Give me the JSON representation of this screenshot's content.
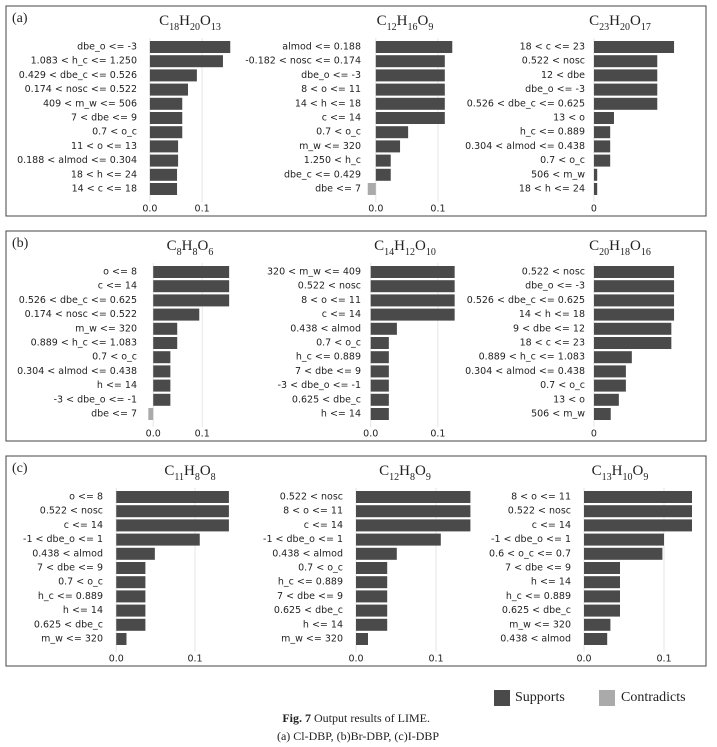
{
  "panels": [
    "(a)",
    "(b)",
    "(c)"
  ],
  "legend": {
    "series": [
      {
        "name": "Supports",
        "color": "#4a4a4a"
      },
      {
        "name": "Contradicts",
        "color": "#aaaaaa"
      }
    ]
  },
  "caption": {
    "label": "Fig. 7",
    "text": "Output results of LIME.",
    "subtitle": "(a) Cl-DBP, (b)Br-DBP, (c)I-DBP"
  },
  "chart_data": [
    {
      "type": "barh",
      "title": "C18H20O13",
      "categories": [
        "dbe_o <= -3",
        "1.083 < h_c <= 1.250",
        "0.429 < dbe_c <= 0.526",
        "0.174 < nosc <= 0.522",
        "409 < m_w <= 506",
        "7 < dbe <= 9",
        "0.7 < o_c",
        "11 < o <= 13",
        "0.188 < almod <= 0.304",
        "18 < h <= 24",
        "14 < c <= 18"
      ],
      "values": [
        0.154,
        0.14,
        0.09,
        0.073,
        0.062,
        0.062,
        0.062,
        0.054,
        0.054,
        0.052,
        0.052
      ],
      "xlim": [
        -0.019,
        0.165
      ],
      "xticks": [
        {
          "value": 0,
          "label": "0.0"
        },
        0.1
      ],
      "grid": true
    },
    {
      "type": "barh",
      "title": "C12H16O9",
      "categories": [
        "almod <= 0.188",
        "-0.182 < nosc <= 0.174",
        "dbe_o <= -3",
        "8 < o <= 11",
        "14 < h <= 18",
        "c <= 14",
        "0.7 < o_c",
        "m_w <= 320",
        "1.250 < h_c",
        "dbe_c <= 0.429",
        "dbe <= 7"
      ],
      "values": [
        0.123,
        0.111,
        0.111,
        0.111,
        0.111,
        0.111,
        0.052,
        0.039,
        0.024,
        0.024,
        -0.013
      ],
      "xlim": [
        -0.019,
        0.129
      ],
      "xticks": [
        {
          "value": 0,
          "label": "0.0"
        },
        0.1
      ],
      "grid": true
    },
    {
      "type": "barh",
      "title": "C23H20O17",
      "categories": [
        "18 < c <= 23",
        "0.522 < nosc",
        "12 < dbe",
        "dbe_o <= -3",
        "0.526 < dbe_c <= 0.625",
        "13 < o",
        "h_c <= 0.889",
        "0.304 < almod <= 0.438",
        "0.7 < o_c",
        "506 < m_w",
        "18 < h <= 24"
      ],
      "values": [
        0.148,
        0.117,
        0.117,
        0.117,
        0.117,
        0.037,
        0.03,
        0.03,
        0.03,
        0.006,
        0.006
      ],
      "xlim": [
        -0.011,
        0.159
      ],
      "xticks": [
        0
      ],
      "grid": true
    },
    {
      "type": "barh",
      "title": "C8H8O6",
      "categories": [
        "o <= 8",
        "c <= 14",
        "0.526 < dbe_c <= 0.625",
        "0.174 < nosc <= 0.522",
        "m_w <= 320",
        "0.889 < h_c <= 1.083",
        "0.7 < o_c",
        "0.304 < almod <= 0.438",
        "h <= 14",
        "-3 < dbe_o <= -1",
        "dbe <= 7"
      ],
      "values": [
        0.155,
        0.155,
        0.155,
        0.094,
        0.049,
        0.049,
        0.035,
        0.035,
        0.035,
        0.035,
        -0.01
      ],
      "xlim": [
        -0.027,
        0.169
      ],
      "xticks": [
        {
          "value": 0,
          "label": "0.0"
        },
        0.1
      ],
      "grid": true
    },
    {
      "type": "barh",
      "title": "C14H12O10",
      "categories": [
        "320 < m_w <= 409",
        "0.522 < nosc",
        "8 < o <= 11",
        "c <= 14",
        "0.438 < almod",
        "0.7 < o_c",
        "h_c <= 0.889",
        "7 < dbe <= 9",
        "-3 < dbe_o <= -1",
        "0.625 < dbe_c",
        "h <= 14"
      ],
      "values": [
        0.125,
        0.125,
        0.125,
        0.125,
        0.039,
        0.027,
        0.027,
        0.027,
        0.027,
        0.027,
        0.027
      ],
      "xlim": [
        -0.01,
        0.127
      ],
      "xticks": [
        {
          "value": 0,
          "label": "0.0"
        },
        0.1
      ],
      "grid": true
    },
    {
      "type": "barh",
      "title": "C20H18O16",
      "categories": [
        "0.522 < nosc",
        "dbe_o <= -3",
        "0.526 < dbe_c <= 0.625",
        "14 < h <= 18",
        "9 < dbe <= 12",
        "18 < c <= 23",
        "0.889 < h_c <= 1.083",
        "0.304 < almod <= 0.438",
        "0.7 < o_c",
        "13 < o",
        "506 < m_w"
      ],
      "values": [
        0.148,
        0.148,
        0.148,
        0.148,
        0.143,
        0.143,
        0.07,
        0.059,
        0.059,
        0.046,
        0.031
      ],
      "xlim": [
        -0.011,
        0.159
      ],
      "xticks": [
        0
      ],
      "grid": true
    },
    {
      "type": "barh",
      "title": "C11H8O8",
      "categories": [
        "o <= 8",
        "0.522 < nosc",
        "c <= 14",
        "-1 < dbe_o <= 1",
        "0.438 < almod",
        "7 < dbe <= 9",
        "0.7 < o_c",
        "h_c <= 0.889",
        "h <= 14",
        "0.625 < dbe_c",
        "m_w <= 320"
      ],
      "values": [
        0.143,
        0.143,
        0.143,
        0.106,
        0.049,
        0.037,
        0.037,
        0.037,
        0.037,
        0.037,
        0.013
      ],
      "xlim": [
        -0.013,
        0.152
      ],
      "xticks": [
        {
          "value": 0,
          "label": "0.0"
        },
        0.1
      ],
      "grid": true
    },
    {
      "type": "barh",
      "title": "C12H8O9",
      "categories": [
        "0.522 < nosc",
        "8 < o <= 11",
        "c <= 14",
        "-1 < dbe_o <= 1",
        "0.438 < almod",
        "0.7 < o_c",
        "h_c <= 0.889",
        "7 < dbe <= 9",
        "0.625 < dbe_c",
        "h <= 14",
        "m_w <= 320"
      ],
      "values": [
        0.143,
        0.143,
        0.143,
        0.106,
        0.051,
        0.039,
        0.039,
        0.039,
        0.039,
        0.039,
        0.015
      ],
      "xlim": [
        -0.0125,
        0.15
      ],
      "xticks": [
        {
          "value": 0,
          "label": "0.0"
        },
        0.1
      ],
      "grid": true
    },
    {
      "type": "barh",
      "title": "C13H10O9",
      "categories": [
        "8 < o <= 11",
        "0.522 < nosc",
        "c <= 14",
        "-1 < dbe_o <= 1",
        "0.6 < o_c <= 0.7",
        "7 < dbe <= 9",
        "h <= 14",
        "h_c <= 0.889",
        "0.625 < dbe_c",
        "m_w <= 320",
        "0.438 < almod"
      ],
      "values": [
        0.135,
        0.135,
        0.135,
        0.1,
        0.098,
        0.045,
        0.045,
        0.045,
        0.045,
        0.033,
        0.029
      ],
      "xlim": [
        -0.0125,
        0.14
      ],
      "xticks": [
        {
          "value": 0,
          "label": "0.0"
        },
        0.1
      ],
      "grid": true
    }
  ]
}
